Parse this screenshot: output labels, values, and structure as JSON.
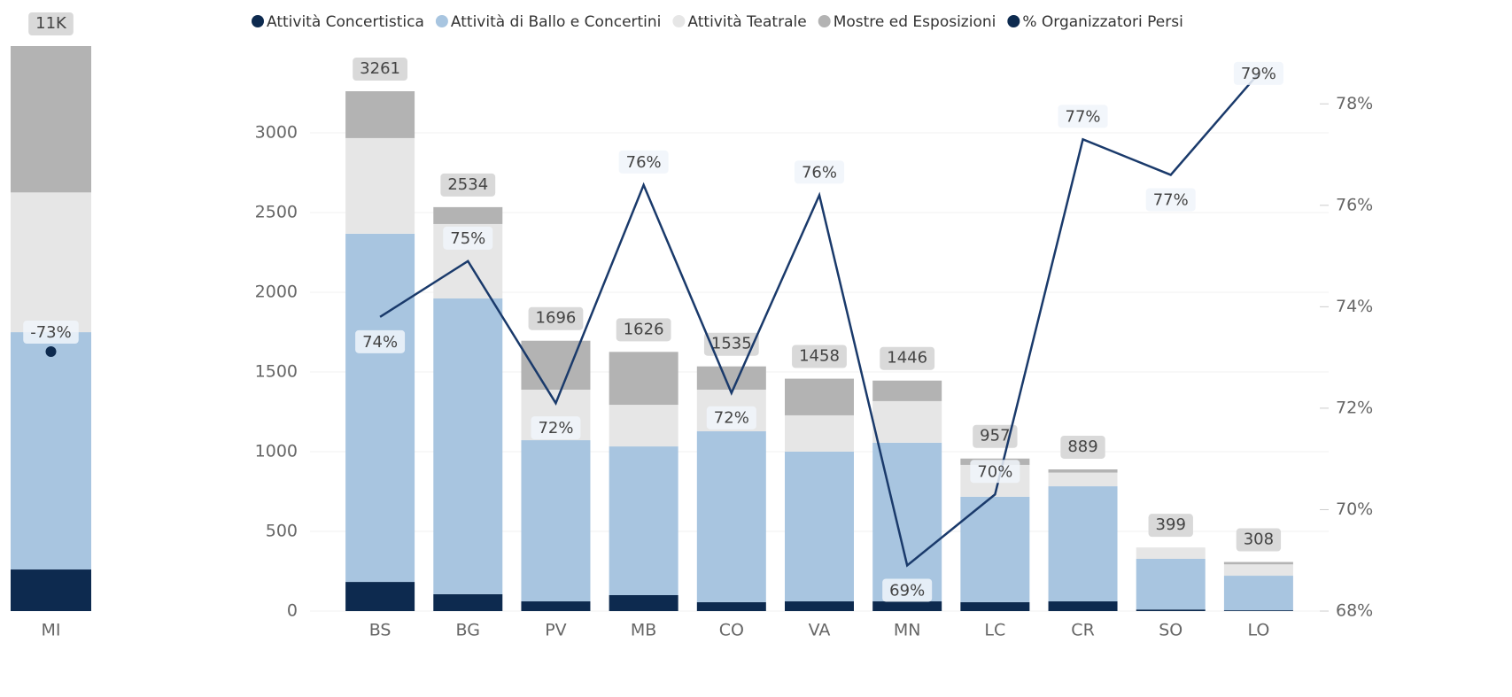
{
  "chart_data": [
    {
      "type": "bar",
      "stacked": true,
      "categories": [
        "MI"
      ],
      "series": [
        {
          "color": "#0d2a4f",
          "values": [
            810
          ]
        },
        {
          "color": "#a8c5e0",
          "values": [
            4620
          ]
        },
        {
          "color": "#e6e6e6",
          "values": [
            2720
          ]
        },
        {
          "color": "#b3b3b3",
          "values": [
            2850
          ]
        },
        {
          "color": "#0d2a4f",
          "type": "line",
          "axis": "y2",
          "values": [
            -73
          ],
          "value_labels": [
            "-73%"
          ]
        }
      ],
      "totals": [
        11000
      ],
      "total_labels": [
        "11K"
      ],
      "ylim": [
        0,
        11000
      ]
    },
    {
      "type": "bar",
      "stacked": true,
      "categories": [
        "BS",
        "BG",
        "PV",
        "MB",
        "CO",
        "VA",
        "MN",
        "LC",
        "CR",
        "SO",
        "LO"
      ],
      "series": [
        {
          "name": "Attività Concertistica",
          "color": "#0d2a4f",
          "values": [
            183,
            106,
            61,
            100,
            56,
            61,
            61,
            56,
            61,
            10,
            5
          ]
        },
        {
          "name": "Attività di Ballo e Concertini",
          "color": "#a8c5e0",
          "values": [
            2184,
            1855,
            1011,
            933,
            1072,
            939,
            995,
            661,
            722,
            318,
            217
          ]
        },
        {
          "name": "Attività Teatrale",
          "color": "#e6e6e6",
          "values": [
            600,
            467,
            317,
            261,
            261,
            228,
            261,
            200,
            86,
            71,
            71
          ]
        },
        {
          "name": "Mostre ed Esposizioni",
          "color": "#b3b3b3",
          "values": [
            294,
            106,
            307,
            332,
            146,
            230,
            129,
            40,
            20,
            0,
            15
          ]
        },
        {
          "name": "% Organizzatori Persi",
          "color": "#1a3a6b",
          "type": "line",
          "axis": "y2",
          "values": [
            73.8,
            74.9,
            72.1,
            76.4,
            72.3,
            76.2,
            68.9,
            70.3,
            77.3,
            76.6,
            78.6
          ],
          "value_labels": [
            "74%",
            "75%",
            "72%",
            "76%",
            "72%",
            "76%",
            "69%",
            "70%",
            "77%",
            "77%",
            "79%"
          ]
        }
      ],
      "totals": [
        3261,
        2534,
        1696,
        1626,
        1535,
        1458,
        1446,
        957,
        889,
        399,
        308
      ],
      "ylim": [
        0,
        3500
      ],
      "yticks": [
        0,
        500,
        1000,
        1500,
        2000,
        2500,
        3000
      ],
      "y2lim": [
        68,
        79
      ],
      "y2ticks": [
        {
          "value": 68,
          "label": "68%"
        },
        {
          "value": 70,
          "label": "70%"
        },
        {
          "value": 72,
          "label": "72%"
        },
        {
          "value": 74,
          "label": "74%"
        },
        {
          "value": 76,
          "label": "76%"
        },
        {
          "value": 78,
          "label": "78%"
        }
      ],
      "grid": true,
      "legend": "top"
    }
  ]
}
